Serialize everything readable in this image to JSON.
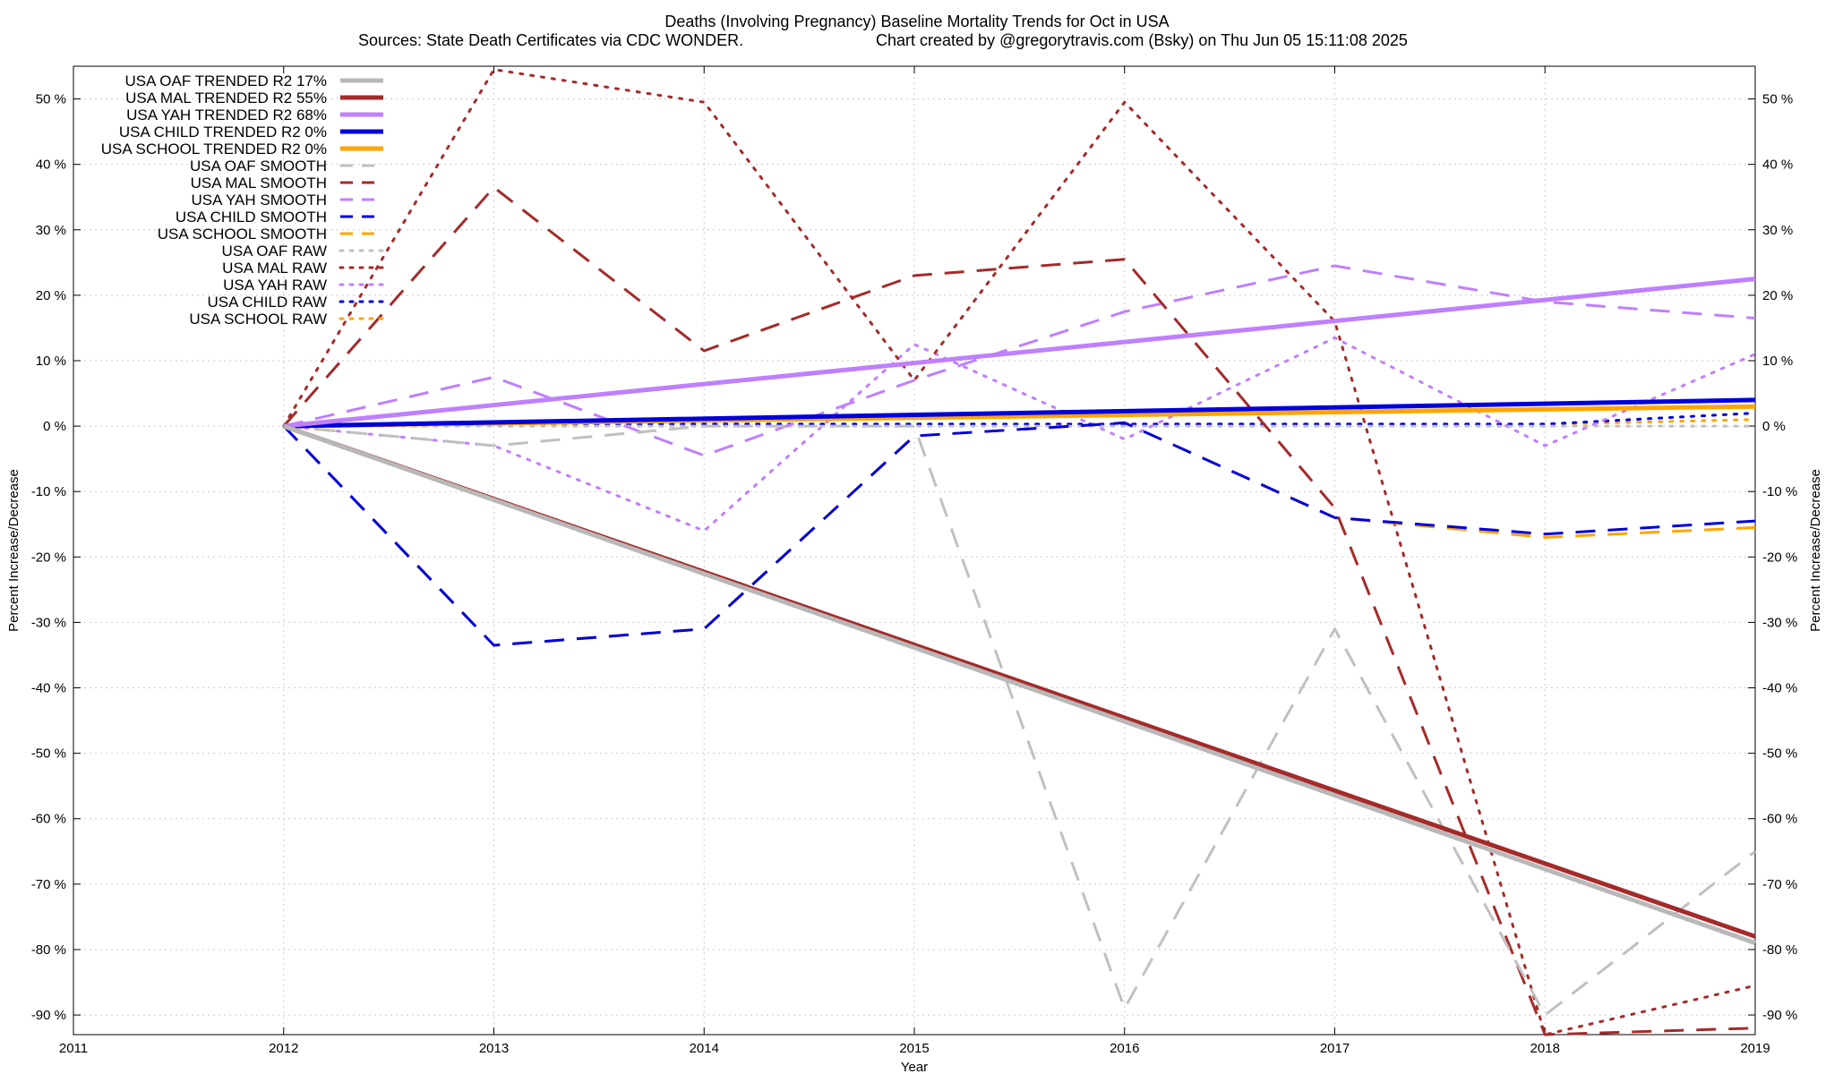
{
  "chart_data": {
    "type": "line",
    "title_line1": "Deaths (Involving Pregnancy)  Baseline Mortality Trends for Oct in USA",
    "title_line2_left": "Sources: State Death Certificates via CDC WONDER.",
    "title_line2_right": "Chart created by @gregorytravis.com (Bsky) on Thu Jun 05 15:11:08 2025",
    "xlabel": "Year",
    "ylabel_left": "Percent Increase/Decrease",
    "ylabel_right": "Percent Increase/Decrease",
    "xlim": [
      2011,
      2019
    ],
    "ylim": [
      -93,
      55
    ],
    "x_ticks": [
      2011,
      2012,
      2013,
      2014,
      2015,
      2016,
      2017,
      2018,
      2019
    ],
    "y_ticks": [
      50,
      40,
      30,
      20,
      10,
      0,
      -10,
      -20,
      -30,
      -40,
      -50,
      -60,
      -70,
      -80,
      -90
    ],
    "y_tick_labels": [
      "50 %",
      "40 %",
      "30 %",
      "20 %",
      "10 %",
      "0 %",
      "-10 %",
      "-20 %",
      "-30 %",
      "-40 %",
      "-50 %",
      "-60 %",
      "-70 %",
      "-80 %",
      "-90 %"
    ],
    "grid": true,
    "legend_position": "top-left",
    "series": [
      {
        "name": "USA OAF TRENDED R2  17%",
        "style": "trend",
        "color": "#b8b8b8",
        "x": [
          2012,
          2019
        ],
        "values": [
          0,
          -79
        ]
      },
      {
        "name": "USA MAL TRENDED R2  55%",
        "style": "trend",
        "color": "#a52a2a",
        "x": [
          2012,
          2019
        ],
        "values": [
          0,
          -78
        ]
      },
      {
        "name": "USA YAH TRENDED R2  68%",
        "style": "trend",
        "color": "#bf7fff",
        "x": [
          2012,
          2019
        ],
        "values": [
          0,
          22.5
        ]
      },
      {
        "name": "USA CHILD TRENDED R2   0%",
        "style": "trend",
        "color": "#0000dd",
        "x": [
          2012,
          2019
        ],
        "values": [
          0,
          4
        ]
      },
      {
        "name": "USA SCHOOL TRENDED R2   0%",
        "style": "trend",
        "color": "#ffa500",
        "x": [
          2012,
          2019
        ],
        "values": [
          0,
          3
        ]
      },
      {
        "name": "USA OAF SMOOTH",
        "style": "smooth",
        "color": "#c0c0c0",
        "x": [
          2012,
          2013,
          2014,
          2015,
          2016,
          2017,
          2018,
          2019
        ],
        "values": [
          0,
          -3,
          0,
          0,
          -89,
          -31,
          -90,
          -65
        ]
      },
      {
        "name": "USA MAL SMOOTH",
        "style": "smooth",
        "color": "#a52a2a",
        "x": [
          2012,
          2013,
          2014,
          2015,
          2016,
          2017,
          2018,
          2019
        ],
        "values": [
          0,
          36.5,
          11.5,
          23,
          25.5,
          -12.5,
          -93,
          -92
        ]
      },
      {
        "name": "USA YAH SMOOTH",
        "style": "smooth",
        "color": "#bf7fff",
        "x": [
          2012,
          2013,
          2014,
          2015,
          2016,
          2017,
          2018,
          2019
        ],
        "values": [
          0,
          7.5,
          -4.5,
          7,
          17.5,
          24.5,
          19,
          16.5
        ]
      },
      {
        "name": "USA CHILD SMOOTH",
        "style": "smooth",
        "color": "#0000dd",
        "x": [
          2012,
          2013,
          2014,
          2015,
          2016,
          2017,
          2018,
          2019
        ],
        "values": [
          0,
          -33.5,
          -31,
          -1.5,
          0.5,
          -14,
          -16.5,
          -14.5
        ]
      },
      {
        "name": "USA SCHOOL SMOOTH",
        "style": "smooth",
        "color": "#ffa500",
        "x": [
          2012,
          2013,
          2014,
          2015,
          2016,
          2017,
          2018,
          2019
        ],
        "values": [
          0,
          -33.5,
          -31,
          -1.5,
          0.5,
          -14,
          -17,
          -15.5
        ]
      },
      {
        "name": "USA OAF RAW",
        "style": "raw",
        "color": "#c0c0c0",
        "x": [
          2012,
          2013,
          2014,
          2015,
          2016,
          2017,
          2018,
          2019
        ],
        "values": [
          0,
          0,
          0,
          0,
          0,
          0,
          0,
          0
        ]
      },
      {
        "name": "USA MAL RAW",
        "style": "raw",
        "color": "#a52a2a",
        "x": [
          2012,
          2013,
          2014,
          2015,
          2016,
          2017,
          2018,
          2019
        ],
        "values": [
          0,
          54.5,
          49.5,
          7,
          49.5,
          16,
          -93,
          -85.5
        ]
      },
      {
        "name": "USA YAH RAW",
        "style": "raw",
        "color": "#bf7fff",
        "x": [
          2012,
          2013,
          2014,
          2015,
          2016,
          2017,
          2018,
          2019
        ],
        "values": [
          0,
          -3,
          -16,
          12.5,
          -2,
          13.5,
          -3,
          11
        ]
      },
      {
        "name": "USA CHILD RAW",
        "style": "raw",
        "color": "#0000dd",
        "x": [
          2012,
          2013,
          2014,
          2015,
          2016,
          2017,
          2018,
          2019
        ],
        "values": [
          0,
          0.3,
          0.3,
          0.3,
          0.3,
          0.3,
          0.3,
          2
        ]
      },
      {
        "name": "USA SCHOOL RAW",
        "style": "raw",
        "color": "#ffa500",
        "x": [
          2012,
          2013,
          2014,
          2015,
          2016,
          2017,
          2018,
          2019
        ],
        "values": [
          0,
          0.3,
          0.3,
          0.3,
          0.3,
          0.3,
          0.3,
          1
        ]
      }
    ]
  }
}
